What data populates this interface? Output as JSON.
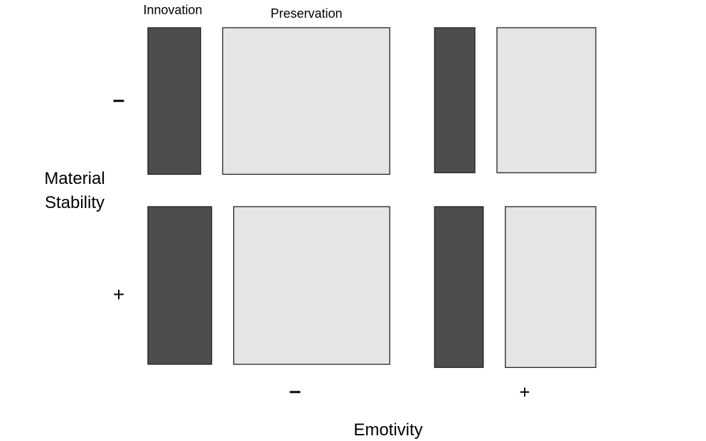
{
  "chart_data": {
    "type": "mosaic",
    "legend": {
      "labels": [
        "Innovation",
        "Preservation"
      ],
      "colors": {
        "Innovation": "#4d4d4d",
        "Preservation": "#e5e5e5"
      }
    },
    "x_axis": {
      "label": "Emotivity",
      "categories": [
        "–",
        "+"
      ],
      "widths": [
        0.54,
        0.36
      ]
    },
    "y_axis": {
      "label_lines": [
        "Material",
        "Stability"
      ],
      "categories": [
        "–",
        "+"
      ]
    },
    "cells": [
      {
        "emotivity": "–",
        "stability": "–",
        "innovation_share": 0.24,
        "height": 0.93
      },
      {
        "emotivity": "–",
        "stability": "+",
        "innovation_share": 0.29,
        "height": 1.0
      },
      {
        "emotivity": "+",
        "stability": "–",
        "innovation_share": 0.29,
        "height": 0.92
      },
      {
        "emotivity": "+",
        "stability": "+",
        "innovation_share": 0.35,
        "height": 1.02
      }
    ]
  }
}
